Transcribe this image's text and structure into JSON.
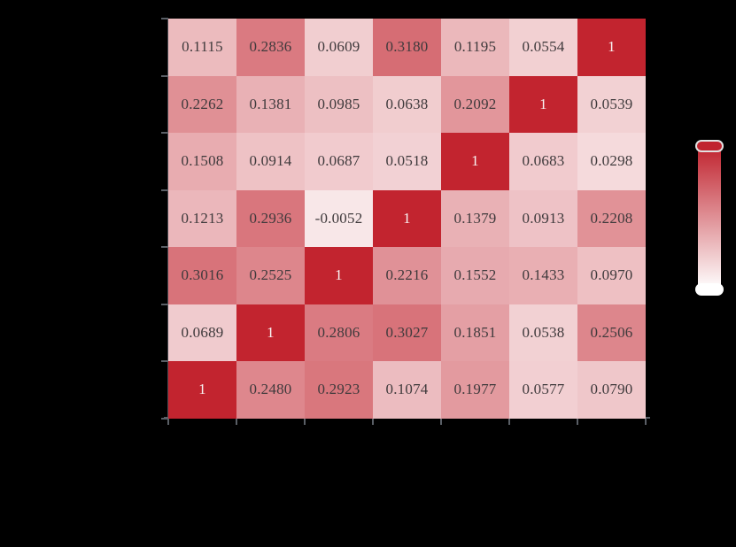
{
  "chart_data": {
    "type": "heatmap",
    "title": "",
    "rows": 7,
    "cols": 7,
    "matrix": [
      [
        0.1115,
        0.2836,
        0.0609,
        0.318,
        0.1195,
        0.0554,
        1
      ],
      [
        0.2262,
        0.1381,
        0.0985,
        0.0638,
        0.2092,
        1,
        0.0539
      ],
      [
        0.1508,
        0.0914,
        0.0687,
        0.0518,
        1,
        0.0683,
        0.0298
      ],
      [
        0.1213,
        0.2936,
        -0.0052,
        1,
        0.1379,
        0.0913,
        0.2208
      ],
      [
        0.3016,
        0.2525,
        1,
        0.2216,
        0.1552,
        0.1433,
        0.097
      ],
      [
        0.0689,
        1,
        0.2806,
        0.3027,
        0.1851,
        0.0538,
        0.2506
      ],
      [
        1,
        0.248,
        0.2923,
        0.1074,
        0.1977,
        0.0577,
        0.079
      ]
    ],
    "cell_labels": [
      [
        "0.1115",
        "0.2836",
        "0.0609",
        "0.3180",
        "0.1195",
        "0.0554",
        "1"
      ],
      [
        "0.2262",
        "0.1381",
        "0.0985",
        "0.0638",
        "0.2092",
        "1",
        "0.0539"
      ],
      [
        "0.1508",
        "0.0914",
        "0.0687",
        "0.0518",
        "1",
        "0.0683",
        "0.0298"
      ],
      [
        "0.1213",
        "0.2936",
        "-0.0052",
        "1",
        "0.1379",
        "0.0913",
        "0.2208"
      ],
      [
        "0.3016",
        "0.2525",
        "1",
        "0.2216",
        "0.1552",
        "0.1433",
        "0.0970"
      ],
      [
        "0.0689",
        "1",
        "0.2806",
        "0.3027",
        "0.1851",
        "0.0538",
        "0.2506"
      ],
      [
        "1",
        "0.2480",
        "0.2923",
        "0.1074",
        "0.1977",
        "0.0577",
        "0.0790"
      ]
    ],
    "colormap": {
      "low_color": "#ffffff",
      "high_color": "#c2242f",
      "vmin": -0.069,
      "vmax": 0.511,
      "white_text_threshold": 0.9
    },
    "colorbar": {
      "gradient_top": "#c0232e",
      "gradient_bottom": "#ffffff",
      "max_handle_color": "#c0232e",
      "min_handle_color": "#ffffff"
    },
    "layout": {
      "background": "#000000",
      "grid_on": false,
      "x_tick_count": 8,
      "y_tick_count": 8,
      "x_tick_labels_visible": false,
      "y_tick_labels_visible": false,
      "axis_color": "#5a5f66",
      "cell_text_color": "#3f3a3c",
      "diag_text_color": "#f8f4f3",
      "legend_position": "right"
    }
  }
}
